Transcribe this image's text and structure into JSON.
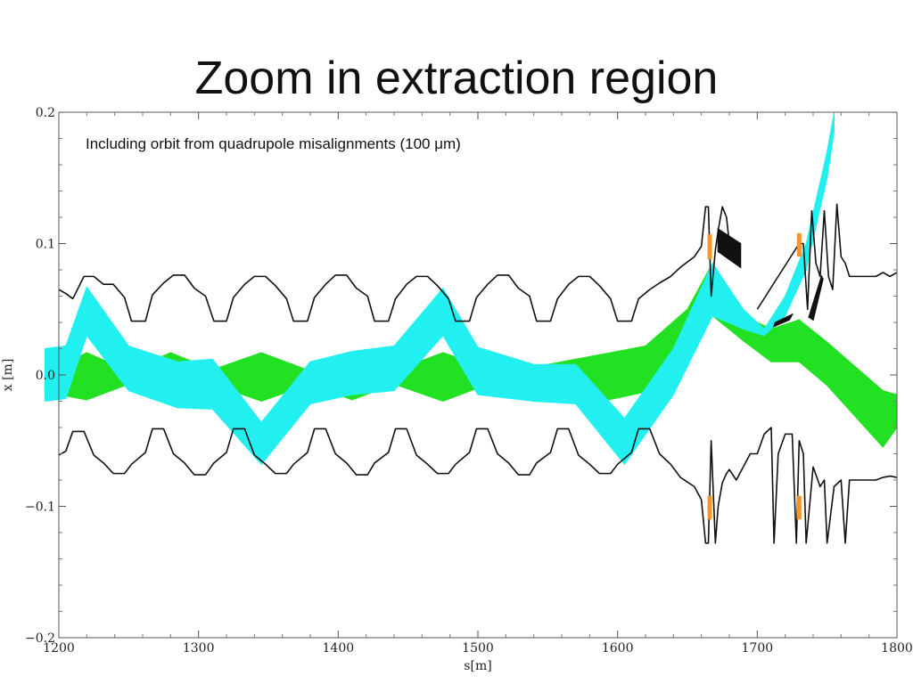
{
  "slide": {
    "title": "Zoom in extraction region"
  },
  "chart_data": {
    "type": "line",
    "title": "",
    "annotation": "Including orbit from quadrupole misalignments (100 μm)",
    "xlabel": "s[m]",
    "ylabel": "x [m]",
    "xlim": [
      1200,
      1800
    ],
    "ylim": [
      -0.2,
      0.2
    ],
    "x_ticks": [
      1200,
      1300,
      1400,
      1500,
      1600,
      1700,
      1800
    ],
    "x_tick_labels": [
      "1200",
      "1300",
      "1400",
      "1500",
      "1600",
      "1700",
      "1800"
    ],
    "y_ticks": [
      -0.2,
      -0.1,
      0.0,
      0.1,
      0.2
    ],
    "y_tick_labels": [
      "−0.2",
      "−0.1",
      "0.0",
      "0.1",
      "0.2"
    ],
    "colors": {
      "green_band": "#22e022",
      "cyan_band": "#22f0f0",
      "aperture": "#111111",
      "septum": "#111111",
      "kicker": "#f0962a"
    },
    "series": [
      {
        "kind": "band",
        "color": "#22e022",
        "x": [
          1190,
          1220,
          1250,
          1280,
          1310,
          1345,
          1380,
          1410,
          1440,
          1475,
          1500,
          1540,
          1580,
          1620,
          1650,
          1668,
          1690,
          1710,
          1730,
          1750,
          1790,
          1800
        ],
        "upper": [
          0.002,
          0.017,
          0.003,
          0.017,
          0.004,
          0.017,
          0.003,
          0.017,
          0.003,
          0.017,
          0.008,
          0.006,
          0.014,
          0.022,
          0.05,
          0.085,
          0.045,
          0.035,
          0.042,
          0.025,
          -0.012,
          -0.015
        ],
        "lower": [
          -0.013,
          -0.019,
          -0.007,
          -0.019,
          -0.007,
          -0.02,
          -0.007,
          -0.019,
          -0.007,
          -0.02,
          -0.01,
          -0.02,
          -0.022,
          -0.013,
          0.018,
          0.045,
          0.026,
          0.01,
          0.01,
          -0.008,
          -0.055,
          -0.04
        ]
      },
      {
        "kind": "band",
        "color": "#22f0f0",
        "x": [
          1190,
          1205,
          1220,
          1250,
          1285,
          1310,
          1345,
          1380,
          1410,
          1440,
          1475,
          1500,
          1540,
          1570,
          1605,
          1640,
          1668,
          1690,
          1705,
          1720,
          1735,
          1750,
          1755
        ],
        "upper": [
          0.02,
          0.022,
          0.067,
          0.022,
          0.01,
          0.012,
          -0.036,
          0.01,
          0.018,
          0.022,
          0.066,
          0.021,
          0.008,
          0.008,
          -0.033,
          0.02,
          0.085,
          0.05,
          0.035,
          0.06,
          0.1,
          0.17,
          0.2
        ],
        "lower": [
          -0.02,
          -0.018,
          0.03,
          -0.012,
          -0.025,
          -0.026,
          -0.068,
          -0.022,
          -0.015,
          -0.012,
          0.03,
          -0.015,
          -0.02,
          -0.022,
          -0.068,
          -0.015,
          0.045,
          0.035,
          0.03,
          0.045,
          0.08,
          0.15,
          0.185
        ]
      }
    ],
    "aperture_upper": {
      "x": [
        1200,
        1205,
        1210,
        1218,
        1225,
        1232,
        1239,
        1247,
        1252,
        1262,
        1267,
        1275,
        1282,
        1290,
        1297,
        1305,
        1311,
        1320,
        1325,
        1333,
        1340,
        1348,
        1355,
        1363,
        1368,
        1378,
        1383,
        1391,
        1398,
        1406,
        1413,
        1421,
        1426,
        1436,
        1441,
        1449,
        1456,
        1464,
        1471,
        1479,
        1484,
        1494,
        1499,
        1507,
        1514,
        1522,
        1529,
        1537,
        1542,
        1552,
        1557,
        1565,
        1572,
        1580,
        1587,
        1595,
        1600,
        1610,
        1615,
        1623,
        1630,
        1638,
        1645,
        1655,
        1660,
        1663,
        1665,
        1667,
        1670,
        1672,
        1675,
        1678,
        1680
      ],
      "y": [
        0.065,
        0.062,
        0.058,
        0.075,
        0.075,
        0.069,
        0.069,
        0.059,
        0.041,
        0.041,
        0.061,
        0.07,
        0.076,
        0.076,
        0.066,
        0.06,
        0.041,
        0.041,
        0.059,
        0.069,
        0.075,
        0.075,
        0.068,
        0.058,
        0.041,
        0.041,
        0.059,
        0.069,
        0.076,
        0.076,
        0.066,
        0.06,
        0.041,
        0.041,
        0.058,
        0.069,
        0.075,
        0.075,
        0.068,
        0.058,
        0.041,
        0.041,
        0.059,
        0.069,
        0.076,
        0.076,
        0.066,
        0.06,
        0.041,
        0.041,
        0.058,
        0.069,
        0.075,
        0.075,
        0.068,
        0.058,
        0.041,
        0.041,
        0.058,
        0.065,
        0.07,
        0.075,
        0.082,
        0.09,
        0.098,
        0.128,
        0.128,
        0.06,
        0.095,
        0.11,
        0.128,
        0.12,
        0.1
      ]
    },
    "aperture_upper_right": {
      "x": [
        1700,
        1703,
        1706,
        1709,
        1712,
        1715,
        1718,
        1721,
        1724,
        1727,
        1730,
        1733,
        1736,
        1739,
        1742,
        1745,
        1748,
        1751,
        1754,
        1757,
        1760,
        1763,
        1766,
        1780,
        1785,
        1790,
        1795,
        1800
      ],
      "y": [
        0.05,
        0.055,
        0.06,
        0.065,
        0.07,
        0.075,
        0.08,
        0.085,
        0.09,
        0.095,
        0.1,
        0.1,
        0.05,
        0.125,
        0.085,
        0.075,
        0.125,
        0.075,
        0.065,
        0.13,
        0.09,
        0.085,
        0.075,
        0.075,
        0.075,
        0.078,
        0.075,
        0.078
      ]
    },
    "aperture_lower": {
      "x": [
        1200,
        1205,
        1210,
        1218,
        1225,
        1232,
        1239,
        1247,
        1252,
        1262,
        1267,
        1275,
        1282,
        1290,
        1297,
        1305,
        1311,
        1320,
        1325,
        1333,
        1340,
        1348,
        1355,
        1363,
        1368,
        1378,
        1383,
        1391,
        1398,
        1406,
        1413,
        1421,
        1426,
        1436,
        1441,
        1449,
        1456,
        1464,
        1471,
        1479,
        1484,
        1494,
        1499,
        1507,
        1514,
        1522,
        1529,
        1537,
        1542,
        1552,
        1557,
        1565,
        1572,
        1580,
        1587,
        1595,
        1600,
        1610,
        1615,
        1623,
        1630,
        1638,
        1645,
        1655,
        1660,
        1663,
        1665,
        1667,
        1670,
        1672,
        1675,
        1678,
        1680,
        1685,
        1690
      ],
      "y": [
        -0.061,
        -0.058,
        -0.043,
        -0.043,
        -0.061,
        -0.067,
        -0.075,
        -0.075,
        -0.068,
        -0.059,
        -0.041,
        -0.041,
        -0.06,
        -0.067,
        -0.076,
        -0.076,
        -0.067,
        -0.059,
        -0.041,
        -0.041,
        -0.061,
        -0.068,
        -0.075,
        -0.075,
        -0.068,
        -0.059,
        -0.041,
        -0.041,
        -0.06,
        -0.067,
        -0.076,
        -0.076,
        -0.067,
        -0.059,
        -0.041,
        -0.041,
        -0.061,
        -0.068,
        -0.075,
        -0.075,
        -0.068,
        -0.059,
        -0.041,
        -0.041,
        -0.06,
        -0.067,
        -0.076,
        -0.076,
        -0.067,
        -0.059,
        -0.041,
        -0.041,
        -0.061,
        -0.068,
        -0.075,
        -0.075,
        -0.068,
        -0.059,
        -0.041,
        -0.041,
        -0.06,
        -0.068,
        -0.078,
        -0.085,
        -0.095,
        -0.128,
        -0.128,
        -0.05,
        -0.128,
        -0.1,
        -0.082,
        -0.075,
        -0.072,
        -0.08,
        -0.07
      ]
    },
    "aperture_lower_right": {
      "x": [
        1690,
        1695,
        1700,
        1705,
        1710,
        1712,
        1715,
        1720,
        1725,
        1728,
        1730,
        1733,
        1735,
        1740,
        1745,
        1748,
        1750,
        1755,
        1760,
        1763,
        1766,
        1780,
        1785,
        1790,
        1795,
        1800
      ],
      "y": [
        -0.07,
        -0.06,
        -0.06,
        -0.045,
        -0.04,
        -0.128,
        -0.06,
        -0.045,
        -0.045,
        -0.128,
        -0.05,
        -0.06,
        -0.128,
        -0.07,
        -0.085,
        -0.08,
        -0.128,
        -0.085,
        -0.08,
        -0.128,
        -0.08,
        -0.08,
        -0.08,
        -0.078,
        -0.077,
        -0.078
      ]
    },
    "black_blocks": [
      {
        "points": [
          [
            1672,
            0.111
          ],
          [
            1688,
            0.1
          ],
          [
            1688,
            0.082
          ],
          [
            1672,
            0.094
          ]
        ]
      },
      {
        "points": [
          [
            1713,
            0.04
          ],
          [
            1725,
            0.046
          ],
          [
            1723,
            0.042
          ],
          [
            1712,
            0.037
          ]
        ]
      },
      {
        "points": [
          [
            1737,
            0.044
          ],
          [
            1746,
            0.075
          ],
          [
            1747,
            0.073
          ],
          [
            1740,
            0.042
          ]
        ]
      }
    ],
    "kicker_marks": [
      {
        "x": 1666,
        "y1": 0.107,
        "y2": 0.088
      },
      {
        "x": 1666,
        "y1": -0.092,
        "y2": -0.11
      },
      {
        "x": 1730,
        "y1": 0.108,
        "y2": 0.09
      },
      {
        "x": 1730,
        "y1": -0.092,
        "y2": -0.11
      }
    ]
  }
}
